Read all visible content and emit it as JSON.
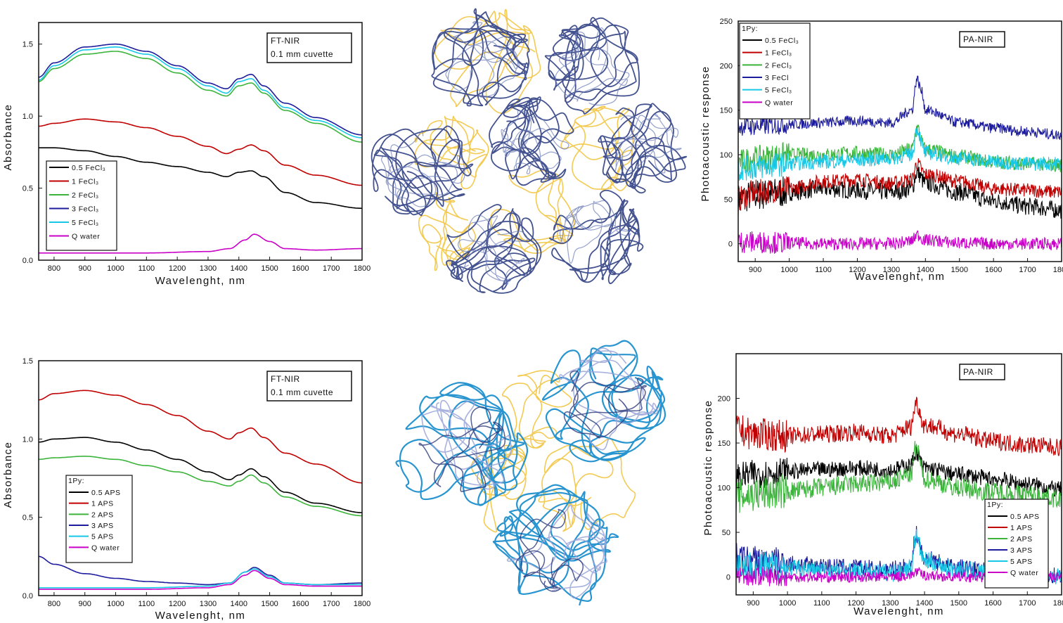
{
  "colors": {
    "black": "#000000",
    "red": "#c00000",
    "green": "#3cb43c",
    "navy": "#1c1c9c",
    "cyan": "#18c8e6",
    "magenta": "#c800c8",
    "polymer_navy": "#3a4a8a",
    "polymer_gold": "#f2c440",
    "polymer_sky": "#1e8fce",
    "polymer_lavender": "#9aa4d8"
  },
  "chart_data": [
    {
      "id": "ftnir-fecl3",
      "type": "line",
      "xlabel": "Wavelenght, nm",
      "ylabel": "Absorbance",
      "xlim": [
        750,
        1800
      ],
      "ylim": [
        0.0,
        1.65
      ],
      "xticks": [
        800,
        900,
        1000,
        1100,
        1200,
        1300,
        1400,
        1500,
        1600,
        1700,
        1800
      ],
      "yticks": [
        0.0,
        0.5,
        1.0,
        1.5
      ],
      "ytick_labels": [
        "0.0",
        "0.5",
        "1.0",
        "1.5"
      ],
      "box_lines": [
        "FT-NIR",
        "0.1 mm cuvette"
      ],
      "legend_title": "",
      "legend": [
        "0.5 FeCl₃",
        "1 FeCl₃",
        "2 FeCl₃",
        "3 FeCl₃",
        "5 FeCl₃",
        "Q water"
      ],
      "legend_colors": [
        "black",
        "red",
        "green",
        "navy",
        "cyan",
        "magenta"
      ],
      "legend_position": "bottom-left",
      "series": [
        {
          "color": "black",
          "x": [
            750,
            800,
            900,
            1000,
            1100,
            1200,
            1300,
            1360,
            1400,
            1440,
            1480,
            1550,
            1650,
            1800
          ],
          "y": [
            0.78,
            0.78,
            0.76,
            0.72,
            0.68,
            0.65,
            0.61,
            0.58,
            0.61,
            0.62,
            0.58,
            0.47,
            0.4,
            0.36
          ]
        },
        {
          "color": "red",
          "x": [
            750,
            800,
            900,
            1000,
            1100,
            1200,
            1300,
            1360,
            1400,
            1440,
            1480,
            1550,
            1650,
            1800
          ],
          "y": [
            0.93,
            0.95,
            0.98,
            0.96,
            0.92,
            0.86,
            0.79,
            0.74,
            0.77,
            0.8,
            0.76,
            0.66,
            0.59,
            0.52
          ]
        },
        {
          "color": "green",
          "x": [
            750,
            800,
            900,
            1000,
            1100,
            1200,
            1300,
            1360,
            1400,
            1440,
            1480,
            1550,
            1650,
            1800
          ],
          "y": [
            1.24,
            1.33,
            1.43,
            1.45,
            1.4,
            1.3,
            1.18,
            1.14,
            1.21,
            1.23,
            1.16,
            1.04,
            0.95,
            0.82
          ]
        },
        {
          "color": "navy",
          "x": [
            750,
            800,
            900,
            1000,
            1100,
            1200,
            1300,
            1360,
            1400,
            1440,
            1480,
            1550,
            1650,
            1800
          ],
          "y": [
            1.27,
            1.37,
            1.48,
            1.5,
            1.45,
            1.35,
            1.23,
            1.19,
            1.26,
            1.29,
            1.21,
            1.09,
            0.99,
            0.87
          ]
        },
        {
          "color": "cyan",
          "x": [
            750,
            800,
            900,
            1000,
            1100,
            1200,
            1300,
            1360,
            1400,
            1440,
            1480,
            1550,
            1650,
            1800
          ],
          "y": [
            1.25,
            1.35,
            1.46,
            1.48,
            1.43,
            1.33,
            1.21,
            1.16,
            1.24,
            1.26,
            1.18,
            1.06,
            0.97,
            0.85
          ]
        },
        {
          "color": "magenta",
          "x": [
            750,
            900,
            1100,
            1300,
            1370,
            1420,
            1450,
            1500,
            1550,
            1650,
            1800
          ],
          "y": [
            0.05,
            0.05,
            0.05,
            0.06,
            0.08,
            0.14,
            0.18,
            0.13,
            0.08,
            0.07,
            0.08
          ]
        }
      ]
    },
    {
      "id": "panir-fecl3",
      "type": "line",
      "xlabel": "Wavelenght, nm",
      "ylabel": "Photoacoustic response",
      "xlim": [
        850,
        1800
      ],
      "ylim": [
        -20,
        250
      ],
      "xticks": [
        900,
        1000,
        1100,
        1200,
        1300,
        1400,
        1500,
        1600,
        1700,
        1800
      ],
      "yticks": [
        0,
        50,
        100,
        150,
        200,
        250
      ],
      "ytick_labels": [
        "0",
        "50",
        "100",
        "150",
        "200",
        "250"
      ],
      "box_lines": [
        "PA-NIR"
      ],
      "legend_title": "1Py:",
      "legend": [
        "0.5 FeCl₃",
        "1 FeCl₃",
        "2 FeCl₃",
        "3 FeCl",
        "5 FeCl₃",
        "Q water"
      ],
      "legend_colors": [
        "black",
        "red",
        "green",
        "navy",
        "cyan",
        "magenta"
      ],
      "legend_position": "top-left",
      "series": [
        {
          "color": "black",
          "x": [
            850,
            900,
            1000,
            1100,
            1200,
            1300,
            1360,
            1375,
            1400,
            1500,
            1600,
            1700,
            1800
          ],
          "y": [
            50,
            55,
            58,
            62,
            60,
            58,
            62,
            80,
            68,
            58,
            48,
            42,
            38
          ],
          "noise": 10
        },
        {
          "color": "red",
          "x": [
            850,
            900,
            1000,
            1100,
            1200,
            1300,
            1360,
            1375,
            1400,
            1500,
            1600,
            1700,
            1800
          ],
          "y": [
            50,
            58,
            62,
            70,
            72,
            68,
            72,
            90,
            78,
            70,
            62,
            60,
            58
          ],
          "noise": 8
        },
        {
          "color": "green",
          "x": [
            850,
            900,
            1000,
            1100,
            1200,
            1300,
            1360,
            1375,
            1400,
            1500,
            1600,
            1700,
            1800
          ],
          "y": [
            92,
            96,
            100,
            100,
            102,
            100,
            106,
            130,
            106,
            98,
            92,
            90,
            88
          ],
          "noise": 8
        },
        {
          "color": "navy",
          "x": [
            850,
            900,
            1000,
            1100,
            1200,
            1300,
            1360,
            1375,
            1390,
            1400,
            1500,
            1600,
            1700,
            1800
          ],
          "y": [
            132,
            132,
            134,
            136,
            138,
            136,
            150,
            185,
            170,
            150,
            136,
            130,
            126,
            122
          ],
          "noise": 6
        },
        {
          "color": "cyan",
          "x": [
            850,
            900,
            1000,
            1100,
            1200,
            1300,
            1360,
            1375,
            1400,
            1500,
            1600,
            1700,
            1800
          ],
          "y": [
            84,
            86,
            90,
            92,
            94,
            96,
            100,
            128,
            102,
            96,
            92,
            90,
            90
          ],
          "noise": 8
        },
        {
          "color": "magenta",
          "x": [
            850,
            900,
            1000,
            1100,
            1200,
            1300,
            1360,
            1375,
            1400,
            1500,
            1600,
            1700,
            1800
          ],
          "y": [
            2,
            2,
            1,
            0,
            0,
            0,
            3,
            10,
            4,
            1,
            0,
            0,
            0
          ],
          "noise": 7
        }
      ]
    },
    {
      "id": "ftnir-aps",
      "type": "line",
      "xlabel": "Wavelenght, nm",
      "ylabel": "Absorbance",
      "xlim": [
        750,
        1800
      ],
      "ylim": [
        0.0,
        1.5
      ],
      "xticks": [
        800,
        900,
        1000,
        1100,
        1200,
        1300,
        1400,
        1500,
        1600,
        1700,
        1800
      ],
      "yticks": [
        0.0,
        0.5,
        1.0,
        1.5
      ],
      "ytick_labels": [
        "0.0",
        "0.5",
        "1.0",
        "1.5"
      ],
      "box_lines": [
        "FT-NIR",
        "0.1 mm cuvette"
      ],
      "legend_title": "1Py:",
      "legend": [
        "0.5 APS",
        "1 APS",
        "2 APS",
        "3 APS",
        "5 APS",
        "Q water"
      ],
      "legend_colors": [
        "black",
        "red",
        "green",
        "navy",
        "cyan",
        "magenta"
      ],
      "legend_position": "bottom-left",
      "series": [
        {
          "color": "black",
          "x": [
            750,
            800,
            900,
            1000,
            1100,
            1200,
            1300,
            1370,
            1400,
            1440,
            1480,
            1550,
            1650,
            1800
          ],
          "y": [
            0.98,
            1.0,
            1.01,
            0.98,
            0.93,
            0.87,
            0.79,
            0.74,
            0.77,
            0.81,
            0.76,
            0.66,
            0.59,
            0.53
          ]
        },
        {
          "color": "red",
          "x": [
            750,
            800,
            900,
            1000,
            1100,
            1200,
            1300,
            1370,
            1400,
            1440,
            1480,
            1550,
            1650,
            1800
          ],
          "y": [
            1.25,
            1.29,
            1.31,
            1.28,
            1.22,
            1.15,
            1.05,
            1.0,
            1.04,
            1.07,
            1.01,
            0.91,
            0.84,
            0.72
          ]
        },
        {
          "color": "green",
          "x": [
            750,
            800,
            900,
            1000,
            1100,
            1200,
            1300,
            1370,
            1400,
            1440,
            1480,
            1550,
            1650,
            1800
          ],
          "y": [
            0.87,
            0.88,
            0.89,
            0.87,
            0.83,
            0.79,
            0.73,
            0.7,
            0.73,
            0.77,
            0.72,
            0.63,
            0.57,
            0.51
          ]
        },
        {
          "color": "navy",
          "x": [
            750,
            800,
            900,
            1000,
            1100,
            1200,
            1300,
            1370,
            1420,
            1450,
            1500,
            1550,
            1650,
            1800
          ],
          "y": [
            0.25,
            0.2,
            0.14,
            0.11,
            0.09,
            0.08,
            0.07,
            0.08,
            0.15,
            0.18,
            0.13,
            0.08,
            0.07,
            0.08
          ]
        },
        {
          "color": "cyan",
          "x": [
            750,
            900,
            1100,
            1300,
            1370,
            1420,
            1450,
            1500,
            1550,
            1650,
            1800
          ],
          "y": [
            0.05,
            0.05,
            0.05,
            0.06,
            0.08,
            0.15,
            0.17,
            0.12,
            0.08,
            0.07,
            0.07
          ]
        },
        {
          "color": "magenta",
          "x": [
            750,
            900,
            1100,
            1300,
            1370,
            1420,
            1450,
            1500,
            1550,
            1650,
            1800
          ],
          "y": [
            0.04,
            0.04,
            0.04,
            0.05,
            0.07,
            0.13,
            0.16,
            0.11,
            0.07,
            0.06,
            0.06
          ]
        }
      ]
    },
    {
      "id": "panir-aps",
      "type": "line",
      "xlabel": "Wavelenght, nm",
      "ylabel": "Photoacoustic response",
      "xlim": [
        850,
        1800
      ],
      "ylim": [
        -20,
        250
      ],
      "xticks": [
        900,
        1000,
        1100,
        1200,
        1300,
        1400,
        1500,
        1600,
        1700,
        1800
      ],
      "yticks": [
        0,
        50,
        100,
        150,
        200
      ],
      "ytick_labels": [
        "0",
        "50",
        "100",
        "150",
        "200"
      ],
      "box_lines": [
        "PA-NIR"
      ],
      "legend_title": "1Py:",
      "legend": [
        "0.5 APS",
        "1 APS",
        "2 APS",
        "3 APS",
        "5 APS",
        "Q water"
      ],
      "legend_colors": [
        "black",
        "red",
        "green",
        "navy",
        "cyan",
        "magenta"
      ],
      "legend_position": "bottom-right",
      "series": [
        {
          "color": "black",
          "x": [
            850,
            900,
            1000,
            1100,
            1200,
            1300,
            1360,
            1375,
            1400,
            1500,
            1600,
            1700,
            1800
          ],
          "y": [
            112,
            115,
            118,
            120,
            122,
            120,
            125,
            140,
            122,
            115,
            110,
            104,
            98
          ],
          "noise": 9
        },
        {
          "color": "red",
          "x": [
            850,
            900,
            1000,
            1100,
            1200,
            1300,
            1360,
            1375,
            1400,
            1500,
            1600,
            1700,
            1800
          ],
          "y": [
            165,
            160,
            158,
            160,
            162,
            158,
            168,
            195,
            170,
            160,
            152,
            148,
            145
          ],
          "noise": 10
        },
        {
          "color": "green",
          "x": [
            850,
            900,
            1000,
            1100,
            1200,
            1300,
            1360,
            1375,
            1400,
            1500,
            1600,
            1700,
            1800
          ],
          "y": [
            90,
            92,
            96,
            100,
            104,
            106,
            115,
            145,
            110,
            100,
            95,
            92,
            88
          ],
          "noise": 11
        },
        {
          "color": "navy",
          "x": [
            850,
            900,
            1000,
            1100,
            1200,
            1300,
            1360,
            1375,
            1400,
            1500,
            1600,
            1700,
            1800
          ],
          "y": [
            20,
            18,
            15,
            12,
            10,
            8,
            12,
            48,
            20,
            10,
            6,
            4,
            2
          ],
          "noise": 10
        },
        {
          "color": "cyan",
          "x": [
            850,
            900,
            1000,
            1100,
            1200,
            1300,
            1360,
            1375,
            1400,
            1500,
            1600,
            1700,
            1800
          ],
          "y": [
            14,
            12,
            10,
            8,
            6,
            5,
            10,
            45,
            18,
            8,
            5,
            3,
            1
          ],
          "noise": 10
        },
        {
          "color": "magenta",
          "x": [
            850,
            900,
            1000,
            1100,
            1200,
            1300,
            1360,
            1375,
            1400,
            1500,
            1600,
            1700,
            1800
          ],
          "y": [
            2,
            1,
            0,
            0,
            0,
            0,
            2,
            6,
            2,
            0,
            0,
            0,
            0
          ],
          "noise": 6
        }
      ]
    }
  ]
}
